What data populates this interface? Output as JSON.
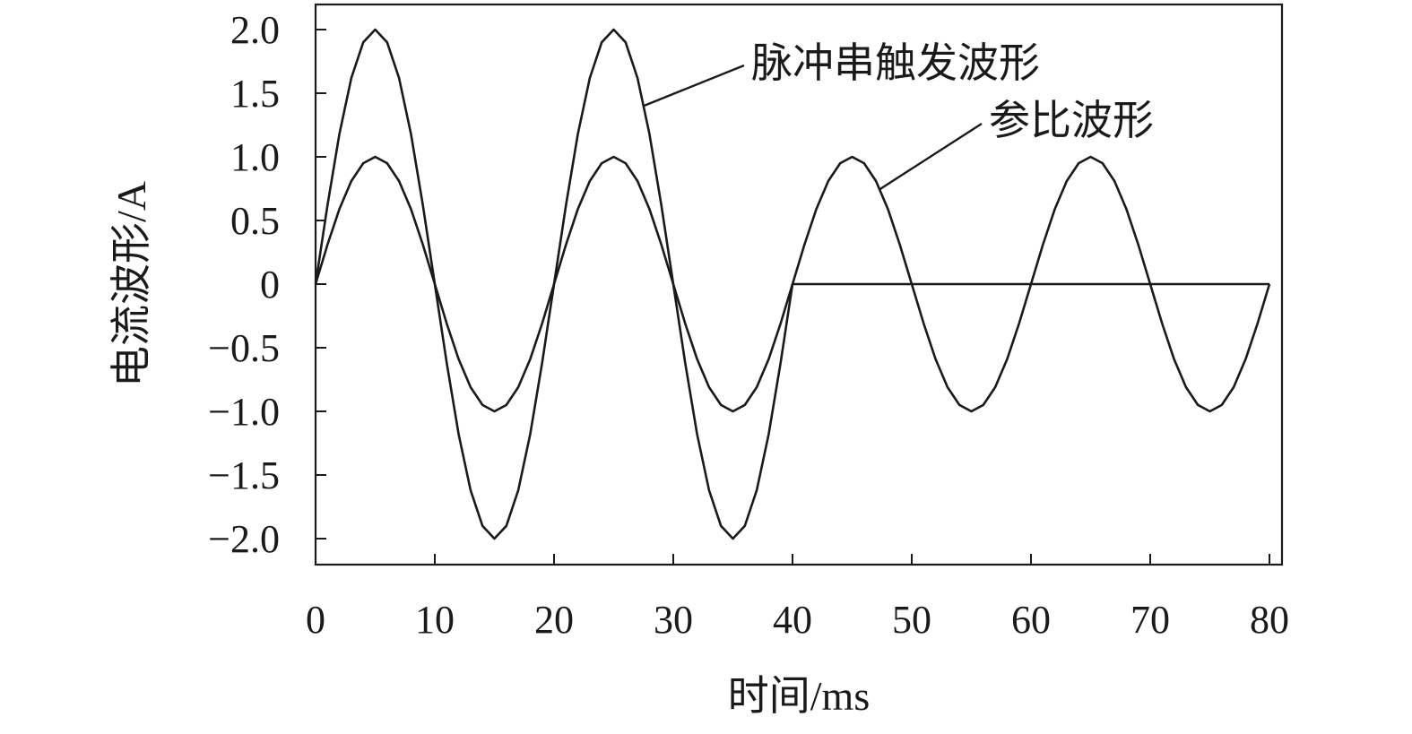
{
  "chart_data": {
    "type": "line",
    "xlabel": "时间/ms",
    "ylabel": "电流波形/A",
    "xlim": [
      0,
      80
    ],
    "ylim": [
      -2.2,
      2.2
    ],
    "xticks": [
      0,
      10,
      20,
      30,
      40,
      50,
      60,
      70,
      80
    ],
    "xtick_labels": [
      "0",
      "10",
      "20",
      "30",
      "40",
      "50",
      "60",
      "70",
      "80"
    ],
    "yticks": [
      2.0,
      1.5,
      1.0,
      0.5,
      0,
      -0.5,
      -1.0,
      -1.5,
      -2.0
    ],
    "ytick_labels": [
      "2.0",
      "1.5",
      "1.0",
      "0.5",
      "0",
      "−0.5",
      "−1.0",
      "−1.5",
      "−2.0"
    ],
    "grid": false,
    "legend": "none",
    "line_color": "#1a1a1a",
    "annotations": [
      {
        "text": "脉冲串触发波形",
        "series": 0,
        "point_x": 27.5
      },
      {
        "text": "参比波形",
        "series": 1,
        "point_x": 47.3
      }
    ],
    "series": [
      {
        "x": [
          0,
          1,
          2,
          3,
          4,
          5,
          6,
          7,
          8,
          9,
          10,
          11,
          12,
          13,
          14,
          15,
          16,
          17,
          18,
          19,
          20,
          21,
          22,
          23,
          24,
          25,
          26,
          27,
          28,
          29,
          30,
          31,
          32,
          33,
          34,
          35,
          36,
          37,
          38,
          39,
          40,
          41,
          42,
          43,
          44,
          45,
          46,
          47,
          48,
          49,
          50,
          51,
          52,
          53,
          54,
          55,
          56,
          57,
          58,
          59,
          60,
          61,
          62,
          63,
          64,
          65,
          66,
          67,
          68,
          69,
          70,
          71,
          72,
          73,
          74,
          75,
          76,
          77,
          78,
          79,
          80
        ],
        "values": [
          0,
          0.62,
          1.18,
          1.62,
          1.9,
          2.0,
          1.9,
          1.62,
          1.18,
          0.62,
          0,
          -0.62,
          -1.18,
          -1.62,
          -1.9,
          -2.0,
          -1.9,
          -1.62,
          -1.18,
          -0.62,
          0,
          0.62,
          1.18,
          1.62,
          1.9,
          2.0,
          1.9,
          1.62,
          1.18,
          0.62,
          0,
          -0.62,
          -1.18,
          -1.62,
          -1.9,
          -2.0,
          -1.9,
          -1.62,
          -1.18,
          -0.62,
          0,
          0,
          0,
          0,
          0,
          0,
          0,
          0,
          0,
          0,
          0,
          0,
          0,
          0,
          0,
          0,
          0,
          0,
          0,
          0,
          0,
          0,
          0,
          0,
          0,
          0,
          0,
          0,
          0,
          0,
          0,
          0,
          0,
          0,
          0,
          0,
          0,
          0,
          0,
          0,
          0
        ]
      },
      {
        "x": [
          0,
          1,
          2,
          3,
          4,
          5,
          6,
          7,
          8,
          9,
          10,
          11,
          12,
          13,
          14,
          15,
          16,
          17,
          18,
          19,
          20,
          21,
          22,
          23,
          24,
          25,
          26,
          27,
          28,
          29,
          30,
          31,
          32,
          33,
          34,
          35,
          36,
          37,
          38,
          39,
          40,
          41,
          42,
          43,
          44,
          45,
          46,
          47,
          48,
          49,
          50,
          51,
          52,
          53,
          54,
          55,
          56,
          57,
          58,
          59,
          60,
          61,
          62,
          63,
          64,
          65,
          66,
          67,
          68,
          69,
          70,
          71,
          72,
          73,
          74,
          75,
          76,
          77,
          78,
          79,
          80
        ],
        "values": [
          0,
          0.31,
          0.59,
          0.81,
          0.95,
          1.0,
          0.95,
          0.81,
          0.59,
          0.31,
          0,
          -0.31,
          -0.59,
          -0.81,
          -0.95,
          -1.0,
          -0.95,
          -0.81,
          -0.59,
          -0.31,
          0,
          0.31,
          0.59,
          0.81,
          0.95,
          1.0,
          0.95,
          0.81,
          0.59,
          0.31,
          0,
          -0.31,
          -0.59,
          -0.81,
          -0.95,
          -1.0,
          -0.95,
          -0.81,
          -0.59,
          -0.31,
          0,
          0.31,
          0.59,
          0.81,
          0.95,
          1.0,
          0.95,
          0.81,
          0.59,
          0.31,
          0,
          -0.31,
          -0.59,
          -0.81,
          -0.95,
          -1.0,
          -0.95,
          -0.81,
          -0.59,
          -0.31,
          0,
          0.31,
          0.59,
          0.81,
          0.95,
          1.0,
          0.95,
          0.81,
          0.59,
          0.31,
          0,
          -0.31,
          -0.59,
          -0.81,
          -0.95,
          -1.0,
          -0.95,
          -0.81,
          -0.59,
          -0.31,
          0
        ]
      }
    ]
  }
}
